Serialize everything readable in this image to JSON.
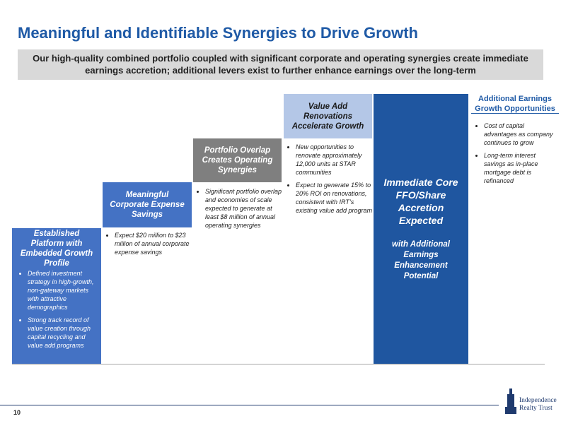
{
  "header": {
    "title": "Meaningful and Identifiable Synergies to Drive Growth",
    "subtitle": "Our high-quality combined portfolio coupled with significant corporate and operating synergies create immediate earnings accretion; additional levers exist to further enhance earnings over the long-term"
  },
  "steps": [
    {
      "heading": "Established Platform with Embedded Growth Profile",
      "bullets": [
        "Defined investment strategy in high-growth, non-gateway markets with attractive demographics",
        "Strong track record of value creation through capital recycling and value add programs"
      ]
    },
    {
      "heading": "Meaningful Corporate Expense Savings",
      "bullets": [
        "Expect $20 million to $23 million of annual corporate expense savings"
      ]
    },
    {
      "heading": "Portfolio Overlap Creates Operating Synergies",
      "bullets": [
        "Significant portfolio overlap and economies of scale expected to generate at least $8 million of annual operating synergies"
      ]
    },
    {
      "heading": "Value Add Renovations Accelerate Growth",
      "bullets": [
        "New opportunities to renovate approximately 12,000 units at STAR communities",
        "Expect to generate 15% to 20% ROI on renovations, consistent with IRT’s existing value add program"
      ]
    }
  ],
  "result": {
    "heading": "Immediate Core FFO/Share Accretion Expected",
    "subheading": "with Additional Earnings Enhancement Potential"
  },
  "additional": {
    "heading": "Additional Earnings Growth Opportunities",
    "bullets": [
      "Cost of capital advantages as company continues to grow",
      "Long-term interest savings as in-place mortgage debt is refinanced"
    ]
  },
  "footer": {
    "page_number": "10",
    "logo_line1": "Independence",
    "logo_line2": "Realty Trust"
  }
}
